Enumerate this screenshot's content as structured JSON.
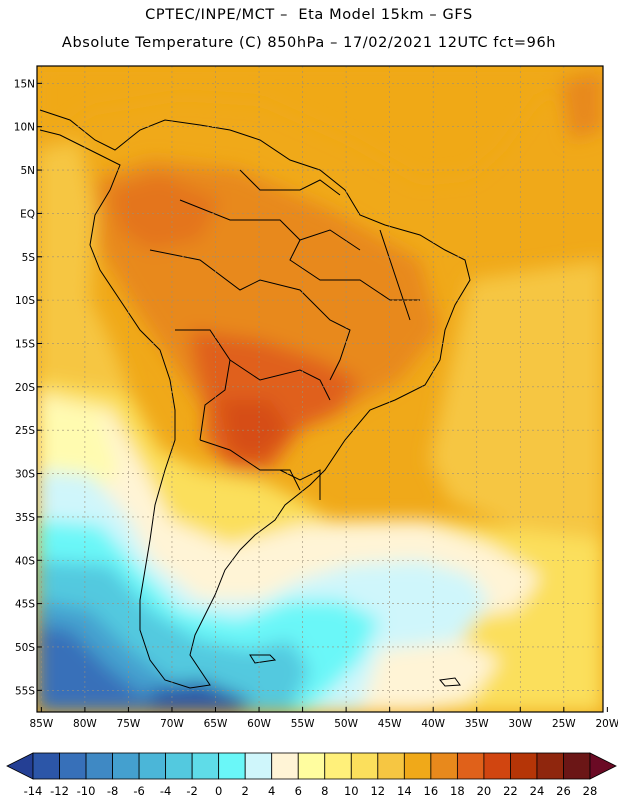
{
  "header": {
    "line1": "CPTEC/INPE/MCT –  Eta Model 15km – GFS",
    "line2": "Absolute Temperature (C) 850hPa – 17/02/2021 12UTC fct=96h"
  },
  "map": {
    "lat_labels": [
      "15N",
      "10N",
      "5N",
      "EQ",
      "5S",
      "10S",
      "15S",
      "20S",
      "25S",
      "30S",
      "35S",
      "40S",
      "45S",
      "50S",
      "55S"
    ],
    "lat_values": [
      15,
      10,
      5,
      0,
      -5,
      -10,
      -15,
      -20,
      -25,
      -30,
      -35,
      -40,
      -45,
      -50,
      -55
    ],
    "lon_labels": [
      "85W",
      "80W",
      "75W",
      "70W",
      "65W",
      "60W",
      "55W",
      "50W",
      "45W",
      "40W",
      "35W",
      "30W",
      "25W",
      "20W"
    ],
    "lon_values": [
      -85,
      -80,
      -75,
      -70,
      -65,
      -60,
      -55,
      -50,
      -45,
      -40,
      -35,
      -30,
      -25,
      -20
    ],
    "lat_range": [
      -57.5,
      17.0
    ],
    "lon_range": [
      -85.5,
      -20.5
    ],
    "variable": "Absolute Temperature (C)",
    "level": "850hPa"
  },
  "colorbar": {
    "labels": [
      "-14",
      "-12",
      "-10",
      "-8",
      "-6",
      "-4",
      "-2",
      "0",
      "2",
      "4",
      "6",
      "8",
      "10",
      "12",
      "14",
      "16",
      "18",
      "20",
      "22",
      "24",
      "26",
      "28"
    ],
    "colors": [
      "#243f94",
      "#2c56a8",
      "#3770b9",
      "#3f89c4",
      "#44a0cf",
      "#4bb6d8",
      "#53c9df",
      "#5fdce8",
      "#6af7f8",
      "#cff6fb",
      "#fff4d6",
      "#fffd9f",
      "#fff07a",
      "#fbdf5c",
      "#f6c642",
      "#f0a919",
      "#e8891c",
      "#e0611a",
      "#d14510",
      "#b53507",
      "#8f260d",
      "#6b1616",
      "#6a0a24"
    ]
  }
}
